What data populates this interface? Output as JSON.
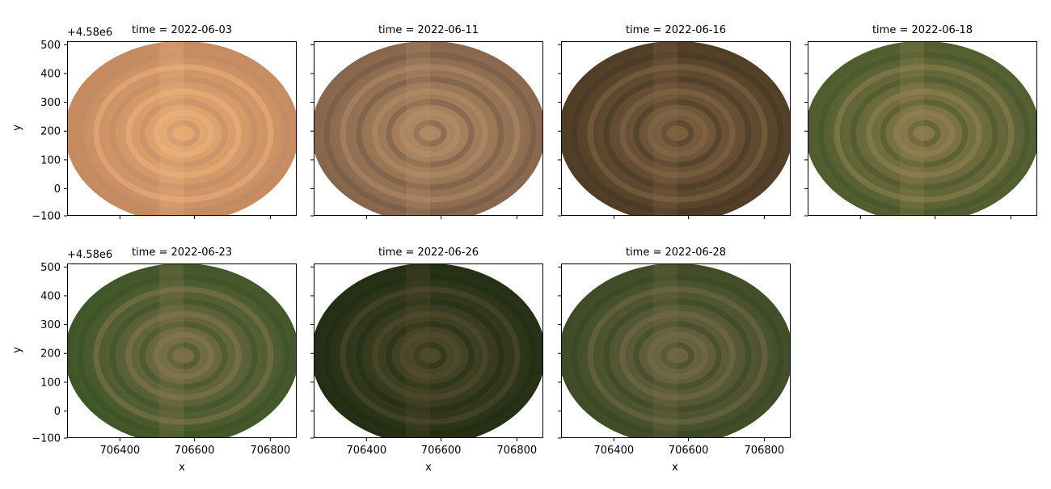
{
  "figure": {
    "ylabel": "y",
    "xlabel": "x",
    "y_offset_label": "+4.58e6",
    "x_ticks": [
      "706400",
      "706600",
      "706800"
    ],
    "y_ticks": [
      "500",
      "400",
      "300",
      "200",
      "100",
      "0",
      "−100"
    ]
  },
  "panels": [
    {
      "title": "time = 2022-06-03",
      "edge": "#c2875e",
      "center": "#e6aa72",
      "ring_dark": "#b98a68",
      "ring_light": "#f0b882"
    },
    {
      "title": "time = 2022-06-11",
      "edge": "#84624a",
      "center": "#b18a64",
      "ring_dark": "#6b5444",
      "ring_light": "#b9926d"
    },
    {
      "title": "time = 2022-06-16",
      "edge": "#4c3a24",
      "center": "#7c6040",
      "ring_dark": "#3f3424",
      "ring_light": "#8a6c4c"
    },
    {
      "title": "time = 2022-06-18",
      "edge": "#4a5a2c",
      "center": "#8b7a4e",
      "ring_dark": "#3f5226",
      "ring_light": "#9a8756"
    },
    {
      "title": "time = 2022-06-23",
      "edge": "#3a5426",
      "center": "#7b6e48",
      "ring_dark": "#355022",
      "ring_light": "#8f7d52"
    },
    {
      "title": "time = 2022-06-26",
      "edge": "#1f2c12",
      "center": "#4e4a2c",
      "ring_dark": "#1c2a10",
      "ring_light": "#5a5030"
    },
    {
      "title": "time = 2022-06-28",
      "edge": "#3a4a24",
      "center": "#6e6444",
      "ring_dark": "#34431f",
      "ring_light": "#7c6e4c"
    }
  ]
}
